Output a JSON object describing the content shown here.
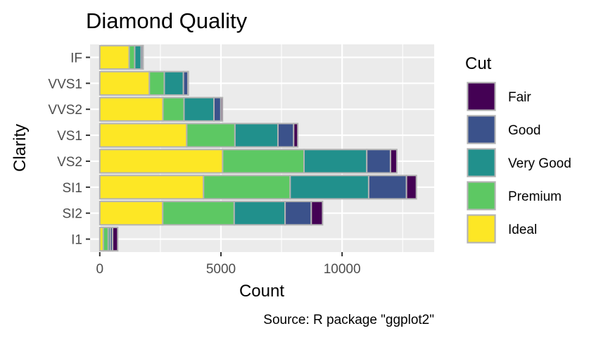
{
  "chart_data": {
    "type": "bar",
    "orientation": "horizontal",
    "stacked": true,
    "title": "Diamond Quality",
    "xlabel": "Count",
    "ylabel": "Clarity",
    "caption": "Source: R package \"ggplot2\"",
    "categories": [
      "I1",
      "SI2",
      "SI1",
      "VS2",
      "VS1",
      "VVS2",
      "VVS1",
      "IF"
    ],
    "x_ticks": [
      0,
      5000,
      10000
    ],
    "x_tick_labels": [
      "0",
      "5000",
      "10000"
    ],
    "xlim": [
      -400,
      13800
    ],
    "legend_title": "Cut",
    "legend_position": "right",
    "grid": true,
    "series": [
      {
        "name": "Ideal",
        "color": "#FDE725",
        "values": [
          146,
          2598,
          4282,
          5071,
          3589,
          2606,
          2047,
          1212
        ]
      },
      {
        "name": "Premium",
        "color": "#5DC863",
        "values": [
          205,
          2949,
          3575,
          3357,
          1989,
          870,
          616,
          230
        ]
      },
      {
        "name": "Very Good",
        "color": "#21908C",
        "values": [
          84,
          2100,
          3240,
          2591,
          1775,
          1235,
          789,
          268
        ]
      },
      {
        "name": "Good",
        "color": "#3B528B",
        "values": [
          96,
          1081,
          1560,
          978,
          648,
          286,
          186,
          71
        ]
      },
      {
        "name": "Fair",
        "color": "#440154",
        "values": [
          210,
          466,
          408,
          261,
          170,
          69,
          17,
          9
        ]
      }
    ],
    "legend_order": [
      "Fair",
      "Good",
      "Very Good",
      "Premium",
      "Ideal"
    ]
  }
}
